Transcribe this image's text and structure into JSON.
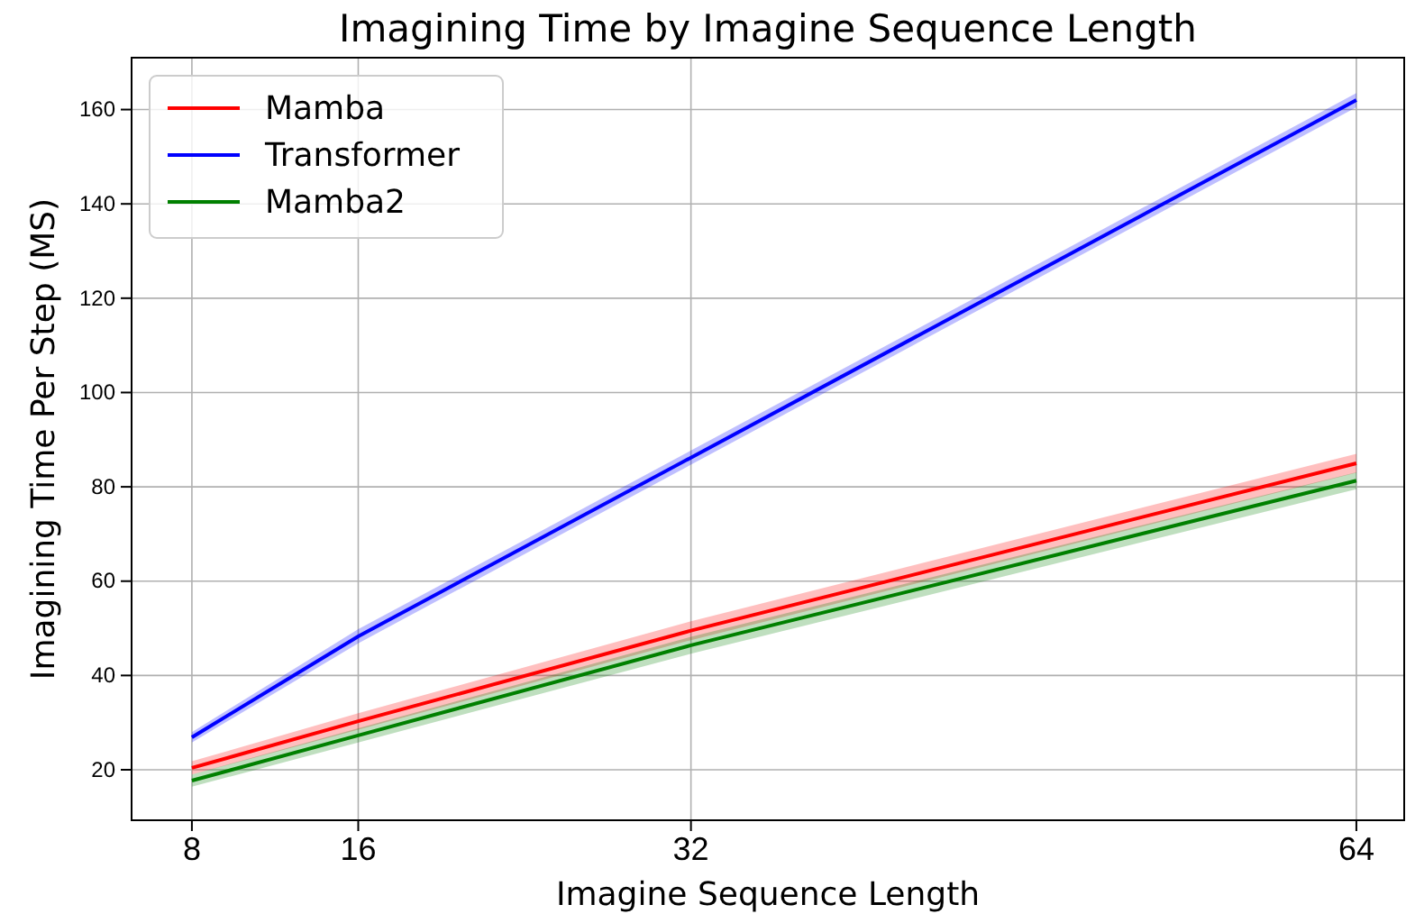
{
  "chart_data": {
    "type": "line",
    "title": "Imagining Time by Imagine Sequence Length",
    "xlabel": "Imagine Sequence Length",
    "ylabel": "Imagining Time Per Step (MS)",
    "x": [
      8,
      16,
      32,
      64
    ],
    "xlim": [
      5.1,
      66.3
    ],
    "xticks": [
      8,
      16,
      32,
      64
    ],
    "ylim": [
      9.3,
      171
    ],
    "yticks": [
      20,
      40,
      60,
      80,
      100,
      120,
      140,
      160
    ],
    "grid": true,
    "legend": "top left",
    "marker": "none",
    "line_style": "solid",
    "series": [
      {
        "name": "Mamba",
        "color": "#ff0000",
        "values": [
          20.4,
          30.3,
          49.5,
          85
        ],
        "lower": [
          19,
          28.5,
          47.5,
          83
        ],
        "upper": [
          21.8,
          32,
          51.5,
          87
        ]
      },
      {
        "name": "Transformer",
        "color": "#0000ff",
        "values": [
          26.9,
          48.3,
          86.2,
          162
        ],
        "lower": [
          25.8,
          46.8,
          84.7,
          160.5
        ],
        "upper": [
          28,
          49.8,
          87.7,
          163.5
        ]
      },
      {
        "name": "Mamba2",
        "color": "#008000",
        "values": [
          17.7,
          27.3,
          46.4,
          81.3
        ],
        "lower": [
          16.4,
          25.8,
          44.6,
          79.5
        ],
        "upper": [
          19,
          28.8,
          48.2,
          83.1
        ]
      }
    ]
  }
}
